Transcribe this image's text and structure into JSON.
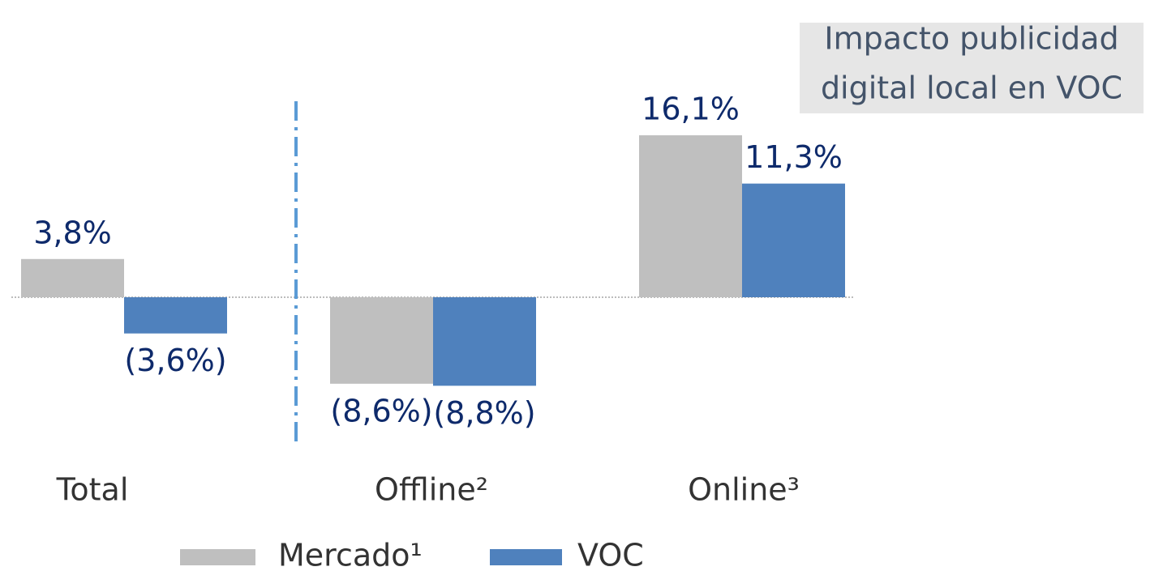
{
  "chart_data": {
    "type": "bar",
    "categories": [
      "Total",
      "Offline²",
      "Online³"
    ],
    "series": [
      {
        "name": "Mercado¹",
        "color": "#bfbfbf",
        "values": [
          3.8,
          -8.6,
          16.1
        ],
        "value_labels": [
          "3,8%",
          "(8,6%)",
          "16,1%"
        ]
      },
      {
        "name": "VOC",
        "color": "#4f81bd",
        "values": [
          -3.6,
          -8.8,
          11.3
        ],
        "value_labels": [
          "(3,6%)",
          "(8,8%)",
          "11,3%"
        ]
      }
    ],
    "annotation": [
      "Impacto publicidad",
      "digital local en VOC"
    ],
    "legend": "bottom"
  }
}
